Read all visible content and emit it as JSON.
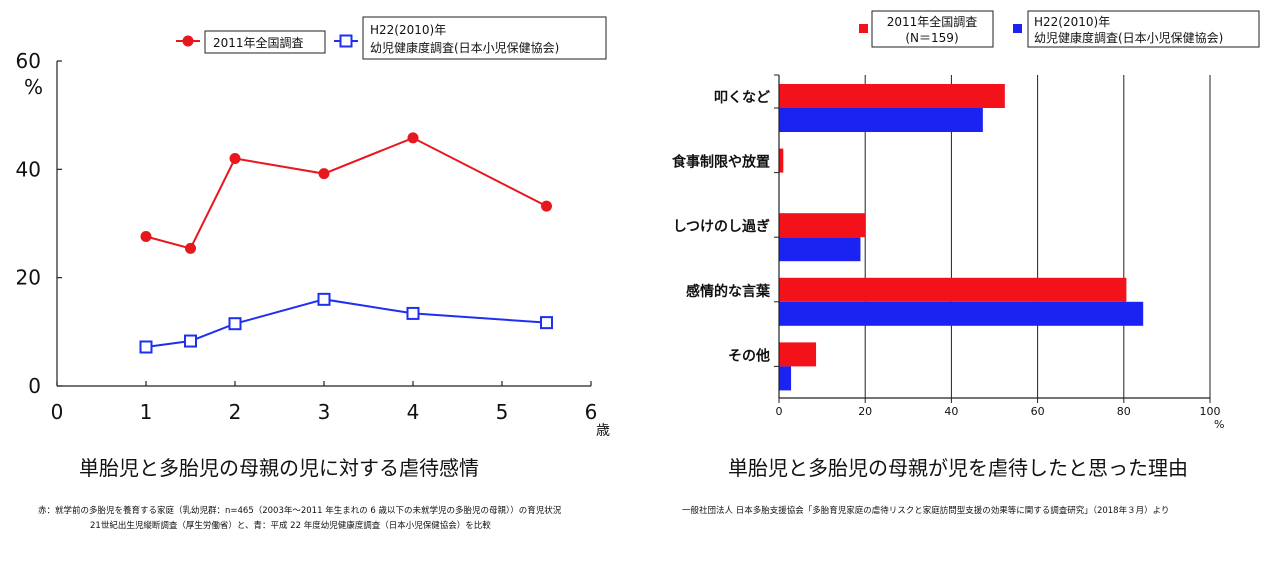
{
  "chart_data": [
    {
      "type": "line",
      "caption": "単胎児と多胎児の母親の児に対する虐待感情",
      "ylabel": "%",
      "xunit": "歳",
      "xlim": [
        0,
        6
      ],
      "ylim": [
        0,
        60
      ],
      "xticks": [
        0,
        1,
        2,
        3,
        4,
        5,
        6
      ],
      "yticks": [
        0,
        20,
        40,
        60
      ],
      "legend_position": "top",
      "series": [
        {
          "name": "2011年全国調査",
          "color": "#e8171e",
          "marker": "circle",
          "x": [
            1,
            1.5,
            2,
            3,
            4,
            5.5
          ],
          "y": [
            27.6,
            25.4,
            42.0,
            39.2,
            45.8,
            33.2
          ]
        },
        {
          "name_line1": "H22(2010)年",
          "name_line2": "幼児健康度調査(日本小児保健協会)",
          "color": "#1e2ff0",
          "marker": "square",
          "x": [
            1,
            1.5,
            2,
            3,
            4,
            5.5
          ],
          "y": [
            7.2,
            8.3,
            11.5,
            16.0,
            13.4,
            11.7
          ]
        }
      ]
    },
    {
      "type": "bar",
      "orientation": "horizontal",
      "caption": "単胎児と多胎児の母親が児を虐待したと思った理由",
      "xunit": "%",
      "xlim": [
        0,
        100
      ],
      "xticks": [
        0,
        20,
        40,
        60,
        80,
        100
      ],
      "grid": true,
      "legend_position": "top",
      "categories": [
        "叩くなど",
        "食事制限や放置",
        "しつけのし過ぎ",
        "感情的な言葉",
        "その他"
      ],
      "series": [
        {
          "name_line1": "2011年全国調査",
          "name_line2": "(N＝159)",
          "color": "#f4121a",
          "values": [
            52.4,
            1.0,
            20.0,
            80.6,
            8.6
          ]
        },
        {
          "name_line1": "H22(2010)年",
          "name_line2": "幼児健康度調査(日本小児保健協会)",
          "color": "#1a23f2",
          "values": [
            47.3,
            0,
            18.9,
            84.5,
            2.8
          ]
        }
      ]
    }
  ],
  "notes": {
    "left_line1": "赤：就学前の多胎児を養育する家庭（乳幼児群：n=465（2003年〜2011 年生まれの 6 歳以下の未就学児の多胎児の母親））の育児状況",
    "left_line2": "21世紀出生児縦断調査（厚生労働省）と、青：平成 22 年度幼児健康度調査（日本小児保健協会）を比較",
    "right_line1": "一般社団法人 日本多胎支援協会「多胎育児家庭の虐待リスクと家庭訪問型支援の効果等に関する調査研究」（2018年３月）より"
  }
}
